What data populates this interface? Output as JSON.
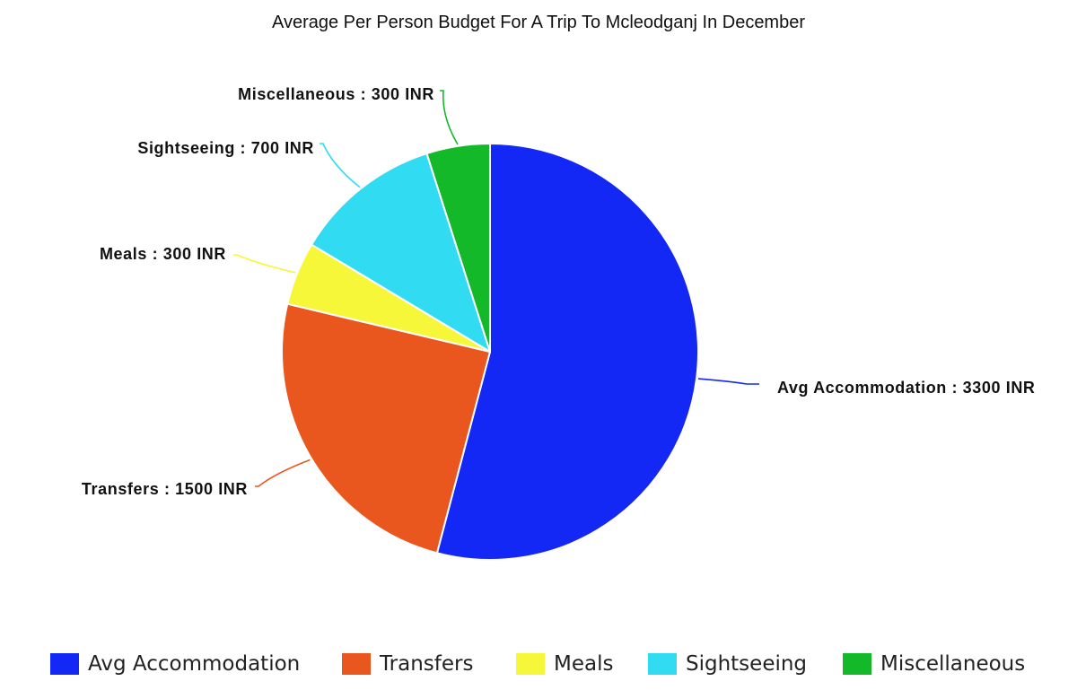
{
  "chart_data": {
    "type": "pie",
    "title": "Average Per Person Budget For A Trip To Mcleodganj In December",
    "unit": "INR",
    "slices": [
      {
        "name": "Avg Accommodation",
        "value": 3300,
        "label": "Avg Accommodation : 3300 INR",
        "color": "#1428f5"
      },
      {
        "name": "Transfers",
        "value": 1500,
        "label": "Transfers : 1500 INR",
        "color": "#ea571e"
      },
      {
        "name": "Meals",
        "value": 300,
        "label": "Meals : 300 INR",
        "color": "#f7f73a"
      },
      {
        "name": "Sightseeing",
        "value": 700,
        "label": "Sightseeing : 700 INR",
        "color": "#31dcf3"
      },
      {
        "name": "Miscellaneous",
        "value": 300,
        "label": "Miscellaneous : 300 INR",
        "color": "#14b92a"
      }
    ],
    "legend_position": "bottom"
  }
}
